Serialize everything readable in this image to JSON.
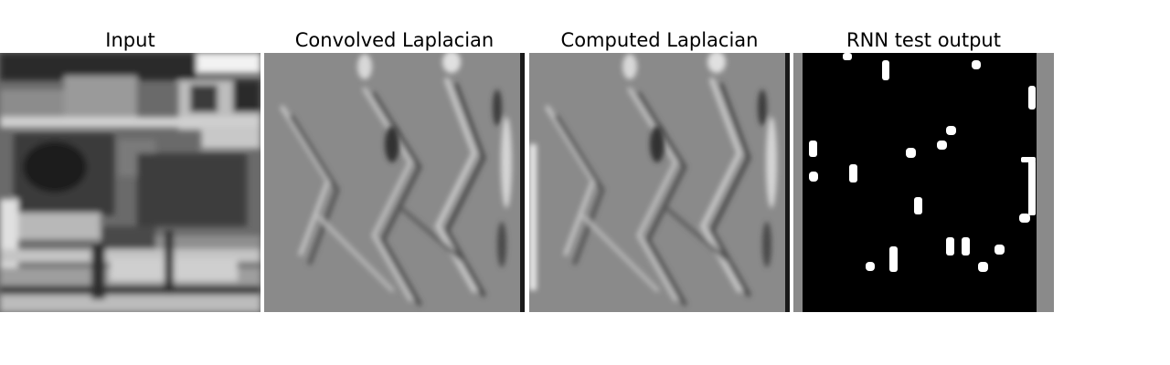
{
  "figure": {
    "panels": [
      {
        "title": "Input"
      },
      {
        "title": "Convolved Laplacian"
      },
      {
        "title": "Computed Laplacian"
      },
      {
        "title": "RNN test output"
      }
    ]
  },
  "colors": {
    "background": "#ffffff",
    "mid_gray": "#8a8a8a",
    "black": "#000000",
    "white": "#ffffff"
  }
}
